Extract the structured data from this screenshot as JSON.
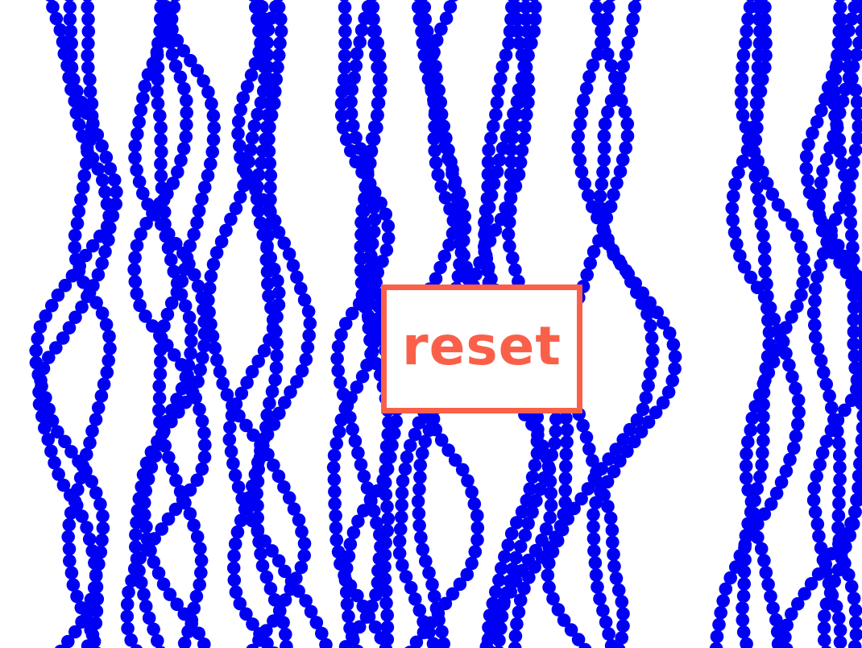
{
  "reset_button": {
    "label": "reset"
  },
  "colors": {
    "dot": "#0000f5",
    "accent": "#fa6049",
    "background": "#ffffff"
  }
}
